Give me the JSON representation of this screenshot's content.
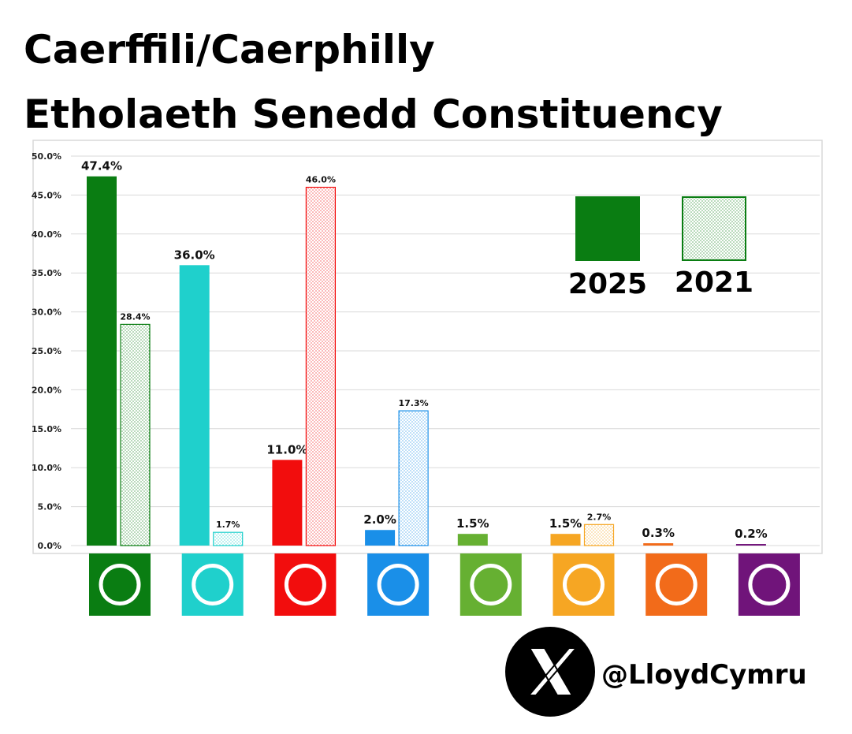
{
  "chart_data": {
    "type": "bar",
    "title": "Caerffili/Caerphilly",
    "subtitle": "Etholaeth Senedd Constituency",
    "categories": [
      null,
      null,
      null,
      null,
      null,
      null,
      null,
      null
    ],
    "colors": [
      "#0a7d12",
      "#1fd0cc",
      "#f20d0d",
      "#1a8fe8",
      "#66b032",
      "#f6a623",
      "#f26b1a",
      "#70147a"
    ],
    "series": [
      {
        "name": "2025",
        "style": "solid",
        "color": "#0a7d12",
        "values": [
          47.4,
          36.0,
          11.0,
          2.0,
          1.5,
          1.5,
          0.3,
          0.2
        ],
        "value_labels": [
          "47.4%",
          "36.0%",
          "11.0%",
          "2.0%",
          "1.5%",
          "1.5%",
          "0.3%",
          "0.2%"
        ]
      },
      {
        "name": "2021",
        "style": "dotted",
        "color": "#0a7d12",
        "values": [
          28.4,
          1.7,
          46.0,
          17.3,
          null,
          2.7,
          null,
          null
        ],
        "value_labels": [
          "28.4%",
          "1.7%",
          "46.0%",
          "17.3%",
          null,
          "2.7%",
          null,
          null
        ]
      }
    ],
    "ylim": [
      0,
      50
    ],
    "yticks": [
      {
        "value": 0,
        "label": "0.0%"
      },
      {
        "value": 5,
        "label": "5.0%"
      },
      {
        "value": 10,
        "label": "10.0%"
      },
      {
        "value": 15,
        "label": "15.0%"
      },
      {
        "value": 20,
        "label": "20.0%"
      },
      {
        "value": 25,
        "label": "25.0%"
      },
      {
        "value": 30,
        "label": "30.0%"
      },
      {
        "value": 35,
        "label": "35.0%"
      },
      {
        "value": 40,
        "label": "40.0%"
      },
      {
        "value": 45,
        "label": "45.0%"
      },
      {
        "value": 50,
        "label": "50.0%"
      }
    ],
    "grid": true,
    "handle": "@LloydCymru"
  }
}
